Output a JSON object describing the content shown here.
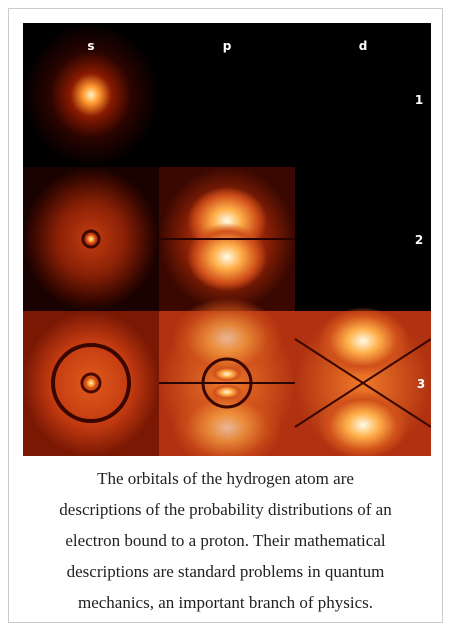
{
  "figure": {
    "image": {
      "column_labels": [
        "s",
        "p",
        "d"
      ],
      "row_labels": [
        "1",
        "2",
        "3"
      ]
    },
    "caption": [
      "The orbitals of the hydrogen atom are",
      "descriptions of the probability distributions of an",
      "electron bound to a proton. Their mathematical",
      "descriptions are standard problems in quantum",
      "mechanics, an important branch of physics."
    ]
  }
}
